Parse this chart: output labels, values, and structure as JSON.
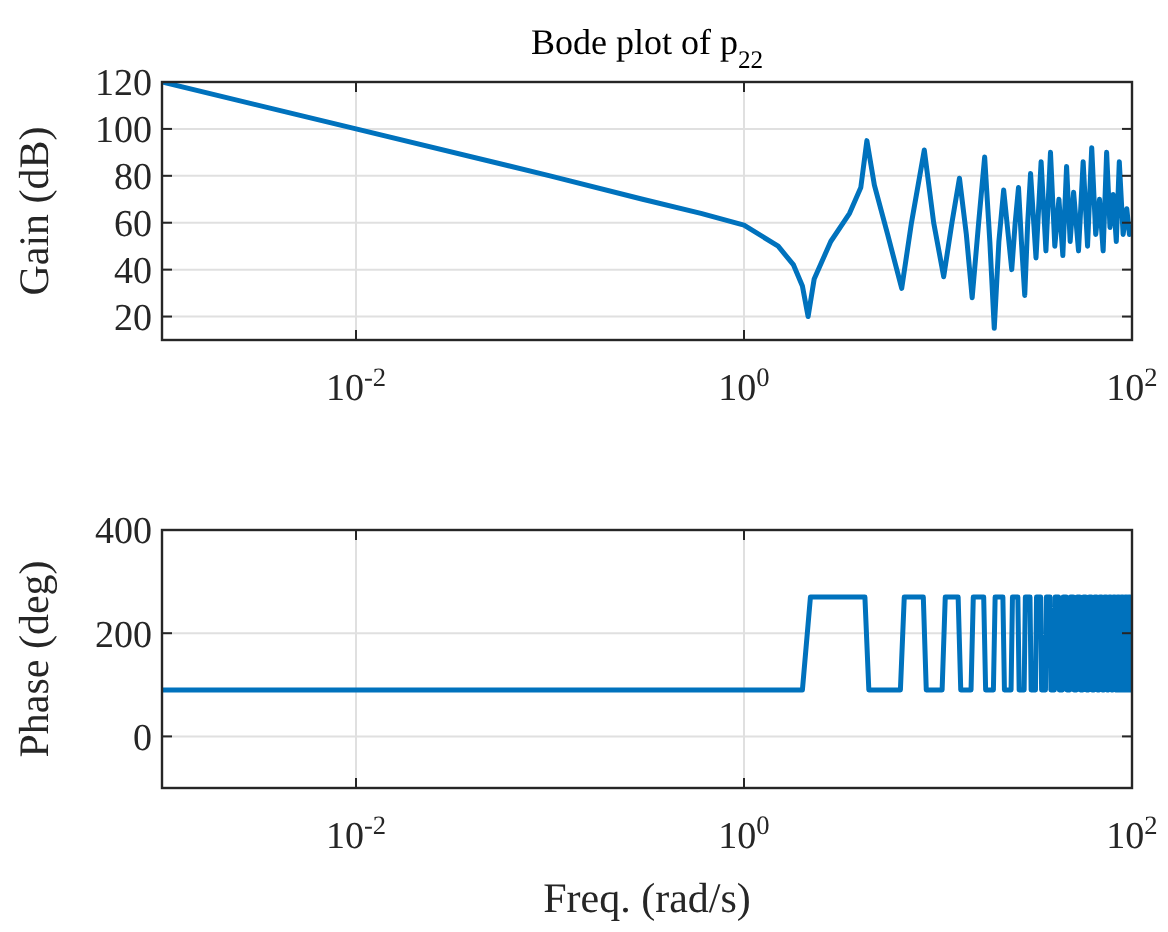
{
  "chart_data": [
    {
      "type": "line",
      "title": "Bode plot of p$_{22}$",
      "ylabel": "Gain (dB)",
      "log": "x",
      "grid": true,
      "xlim": [
        0.001,
        100
      ],
      "xticks": [
        {
          "value": 0.01,
          "label": "10$^{-2}$"
        },
        {
          "value": 1,
          "label": "10$^{0}$"
        },
        {
          "value": 100,
          "label": "10$^{2}$"
        }
      ],
      "ylim": [
        10,
        120
      ],
      "yticks": [
        20,
        40,
        60,
        80,
        100,
        120
      ],
      "series": [
        {
          "color": "#0072bd",
          "x": [
            0.001,
            0.01,
            0.1,
            0.3,
            0.6,
            1,
            1.5,
            1.8,
            2.0,
            2.14,
            2.3,
            2.8,
            3.5,
            4.0,
            4.3,
            4.7,
            5.5,
            6.5,
            7.3,
            8.5,
            9.5,
            10.7,
            11.8,
            12.9,
            14,
            15,
            16.2,
            17.4,
            18.5,
            19.5,
            20.6,
            21.8,
            23,
            24,
            25,
            26,
            27,
            28,
            29,
            30,
            32,
            34,
            36,
            38,
            40,
            42,
            44,
            46,
            48,
            50,
            53,
            56,
            59,
            62,
            65,
            68,
            71,
            74,
            77,
            80,
            83,
            86,
            90,
            94,
            97,
            100
          ],
          "values": [
            120,
            100,
            80,
            70,
            64,
            59,
            50,
            42,
            33,
            20,
            36,
            52,
            64,
            75,
            95,
            76,
            55,
            32,
            60,
            91,
            60,
            37,
            60,
            79,
            55,
            28,
            60,
            88,
            52,
            15,
            52,
            74,
            55,
            40,
            60,
            75,
            50,
            29,
            60,
            81,
            45,
            86,
            48,
            90,
            50,
            70,
            46,
            84,
            52,
            73,
            48,
            86,
            50,
            92,
            55,
            70,
            48,
            90,
            58,
            72,
            52,
            86,
            55,
            66,
            55,
            58
          ]
        }
      ]
    },
    {
      "type": "line",
      "xlabel": "Freq. (rad/s)",
      "ylabel": "Phase (deg)",
      "log": "x",
      "grid": true,
      "xlim": [
        0.001,
        100
      ],
      "xticks": [
        {
          "value": 0.01,
          "label": "10$^{-2}$"
        },
        {
          "value": 1,
          "label": "10$^{0}$"
        },
        {
          "value": 100,
          "label": "10$^{2}$"
        }
      ],
      "ylim": [
        -100,
        400
      ],
      "yticks": [
        0,
        200,
        400
      ],
      "series": [
        {
          "color": "#0072bd",
          "x": [
            0.001,
            2.0,
            2.2,
            4.2,
            4.4,
            6.4,
            6.7,
            8.4,
            8.7,
            10.5,
            10.9,
            12.7,
            13.1,
            14.8,
            15.2,
            17.2,
            17.6,
            19.3,
            19.7,
            21.6,
            22,
            23.8,
            24.2,
            25.8,
            26.2,
            27.8,
            28.2,
            29.8,
            30.2,
            31.8,
            32.2,
            33.8,
            34.2,
            35.8,
            36.2,
            37.8,
            38.2,
            39.8,
            40.2,
            41.8,
            42.2,
            43.8,
            44.2,
            45.8,
            46.2,
            47.8,
            48.2,
            49.8,
            50.2,
            51.8,
            52.2,
            53.8,
            54.2,
            55.8,
            56.2,
            57.8,
            58.2,
            59.8,
            60.2,
            61.8,
            62.2,
            63.8,
            64.2,
            65.8,
            66.2,
            67.8,
            68.2,
            69.8,
            70.2,
            71.8,
            72.2,
            73.8,
            74.2,
            75.8,
            76.2,
            77.8,
            78.2,
            79.8,
            80.2,
            81.8,
            82.2,
            83.8,
            84.2,
            85.8,
            86.2,
            87.8,
            88.2,
            89.8,
            90.2,
            91.8,
            92.2,
            93.8,
            94.2,
            95.8,
            96.2,
            97.8,
            98.2,
            100
          ],
          "values": [
            90,
            90,
            270,
            270,
            90,
            90,
            270,
            270,
            90,
            90,
            270,
            270,
            90,
            90,
            270,
            270,
            90,
            90,
            270,
            270,
            90,
            90,
            270,
            270,
            90,
            90,
            270,
            270,
            90,
            90,
            270,
            270,
            90,
            90,
            270,
            270,
            90,
            90,
            270,
            270,
            90,
            90,
            270,
            270,
            90,
            90,
            270,
            270,
            90,
            90,
            270,
            270,
            90,
            90,
            270,
            270,
            90,
            90,
            270,
            270,
            90,
            90,
            270,
            270,
            90,
            90,
            270,
            270,
            90,
            90,
            270,
            270,
            90,
            90,
            270,
            270,
            90,
            90,
            270,
            270,
            90,
            90,
            270,
            270,
            90,
            90,
            270,
            270,
            90,
            90,
            270,
            270,
            90,
            90,
            270,
            270,
            90,
            90
          ]
        }
      ]
    }
  ]
}
